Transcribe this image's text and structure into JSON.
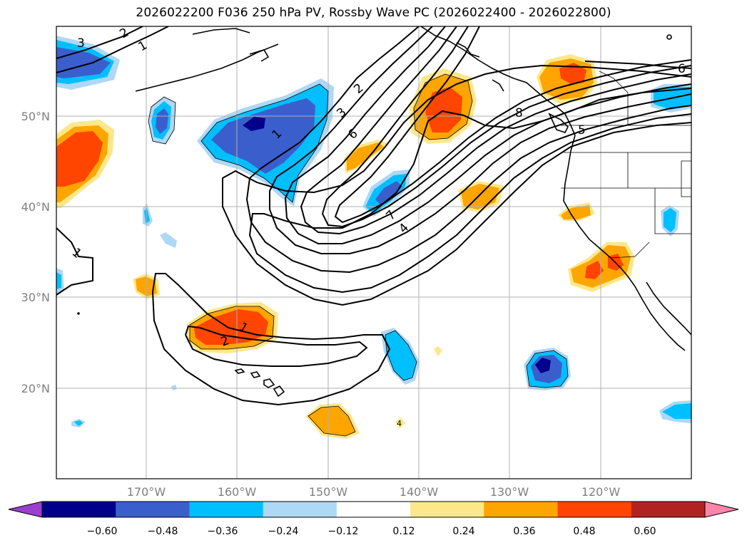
{
  "title": "2026022200 F036 250 hPa PV, Rossby Wave PC (2026022400 - 2026022800)",
  "map": {
    "lat_labels": [
      "50°N",
      "40°N",
      "30°N",
      "20°N"
    ],
    "lon_labels": [
      "170°W",
      "160°W",
      "150°W",
      "140°W",
      "130°W",
      "120°W"
    ],
    "contour_labels": [
      "3",
      "2",
      "1",
      "2",
      "3",
      "6",
      "1",
      "8",
      "5",
      "6",
      "1",
      "7",
      "4",
      "1",
      "2",
      "4"
    ]
  },
  "colorbar": {
    "ticks": [
      "−0.60",
      "−0.48",
      "−0.36",
      "−0.24",
      "−0.12",
      "0.12",
      "0.24",
      "0.36",
      "0.48",
      "0.60"
    ],
    "colors": [
      "#9a3fd0",
      "#00008b",
      "#3a5fcd",
      "#00bfff",
      "#add8f6",
      "#ffffff",
      "#fce88a",
      "#ffa500",
      "#ff4500",
      "#b22222",
      "#ff85a8"
    ]
  },
  "colors": {
    "neg_strong": "#00008b",
    "neg_mid": "#3a5fcd",
    "neg_light": "#00bfff",
    "neg_pale": "#add8f6",
    "pos_pale": "#fce88a",
    "pos_light": "#ffa500",
    "pos_mid": "#ff4500",
    "pos_strong": "#b22222",
    "grid": "#b0b0b0",
    "axis_label": "#808080"
  }
}
